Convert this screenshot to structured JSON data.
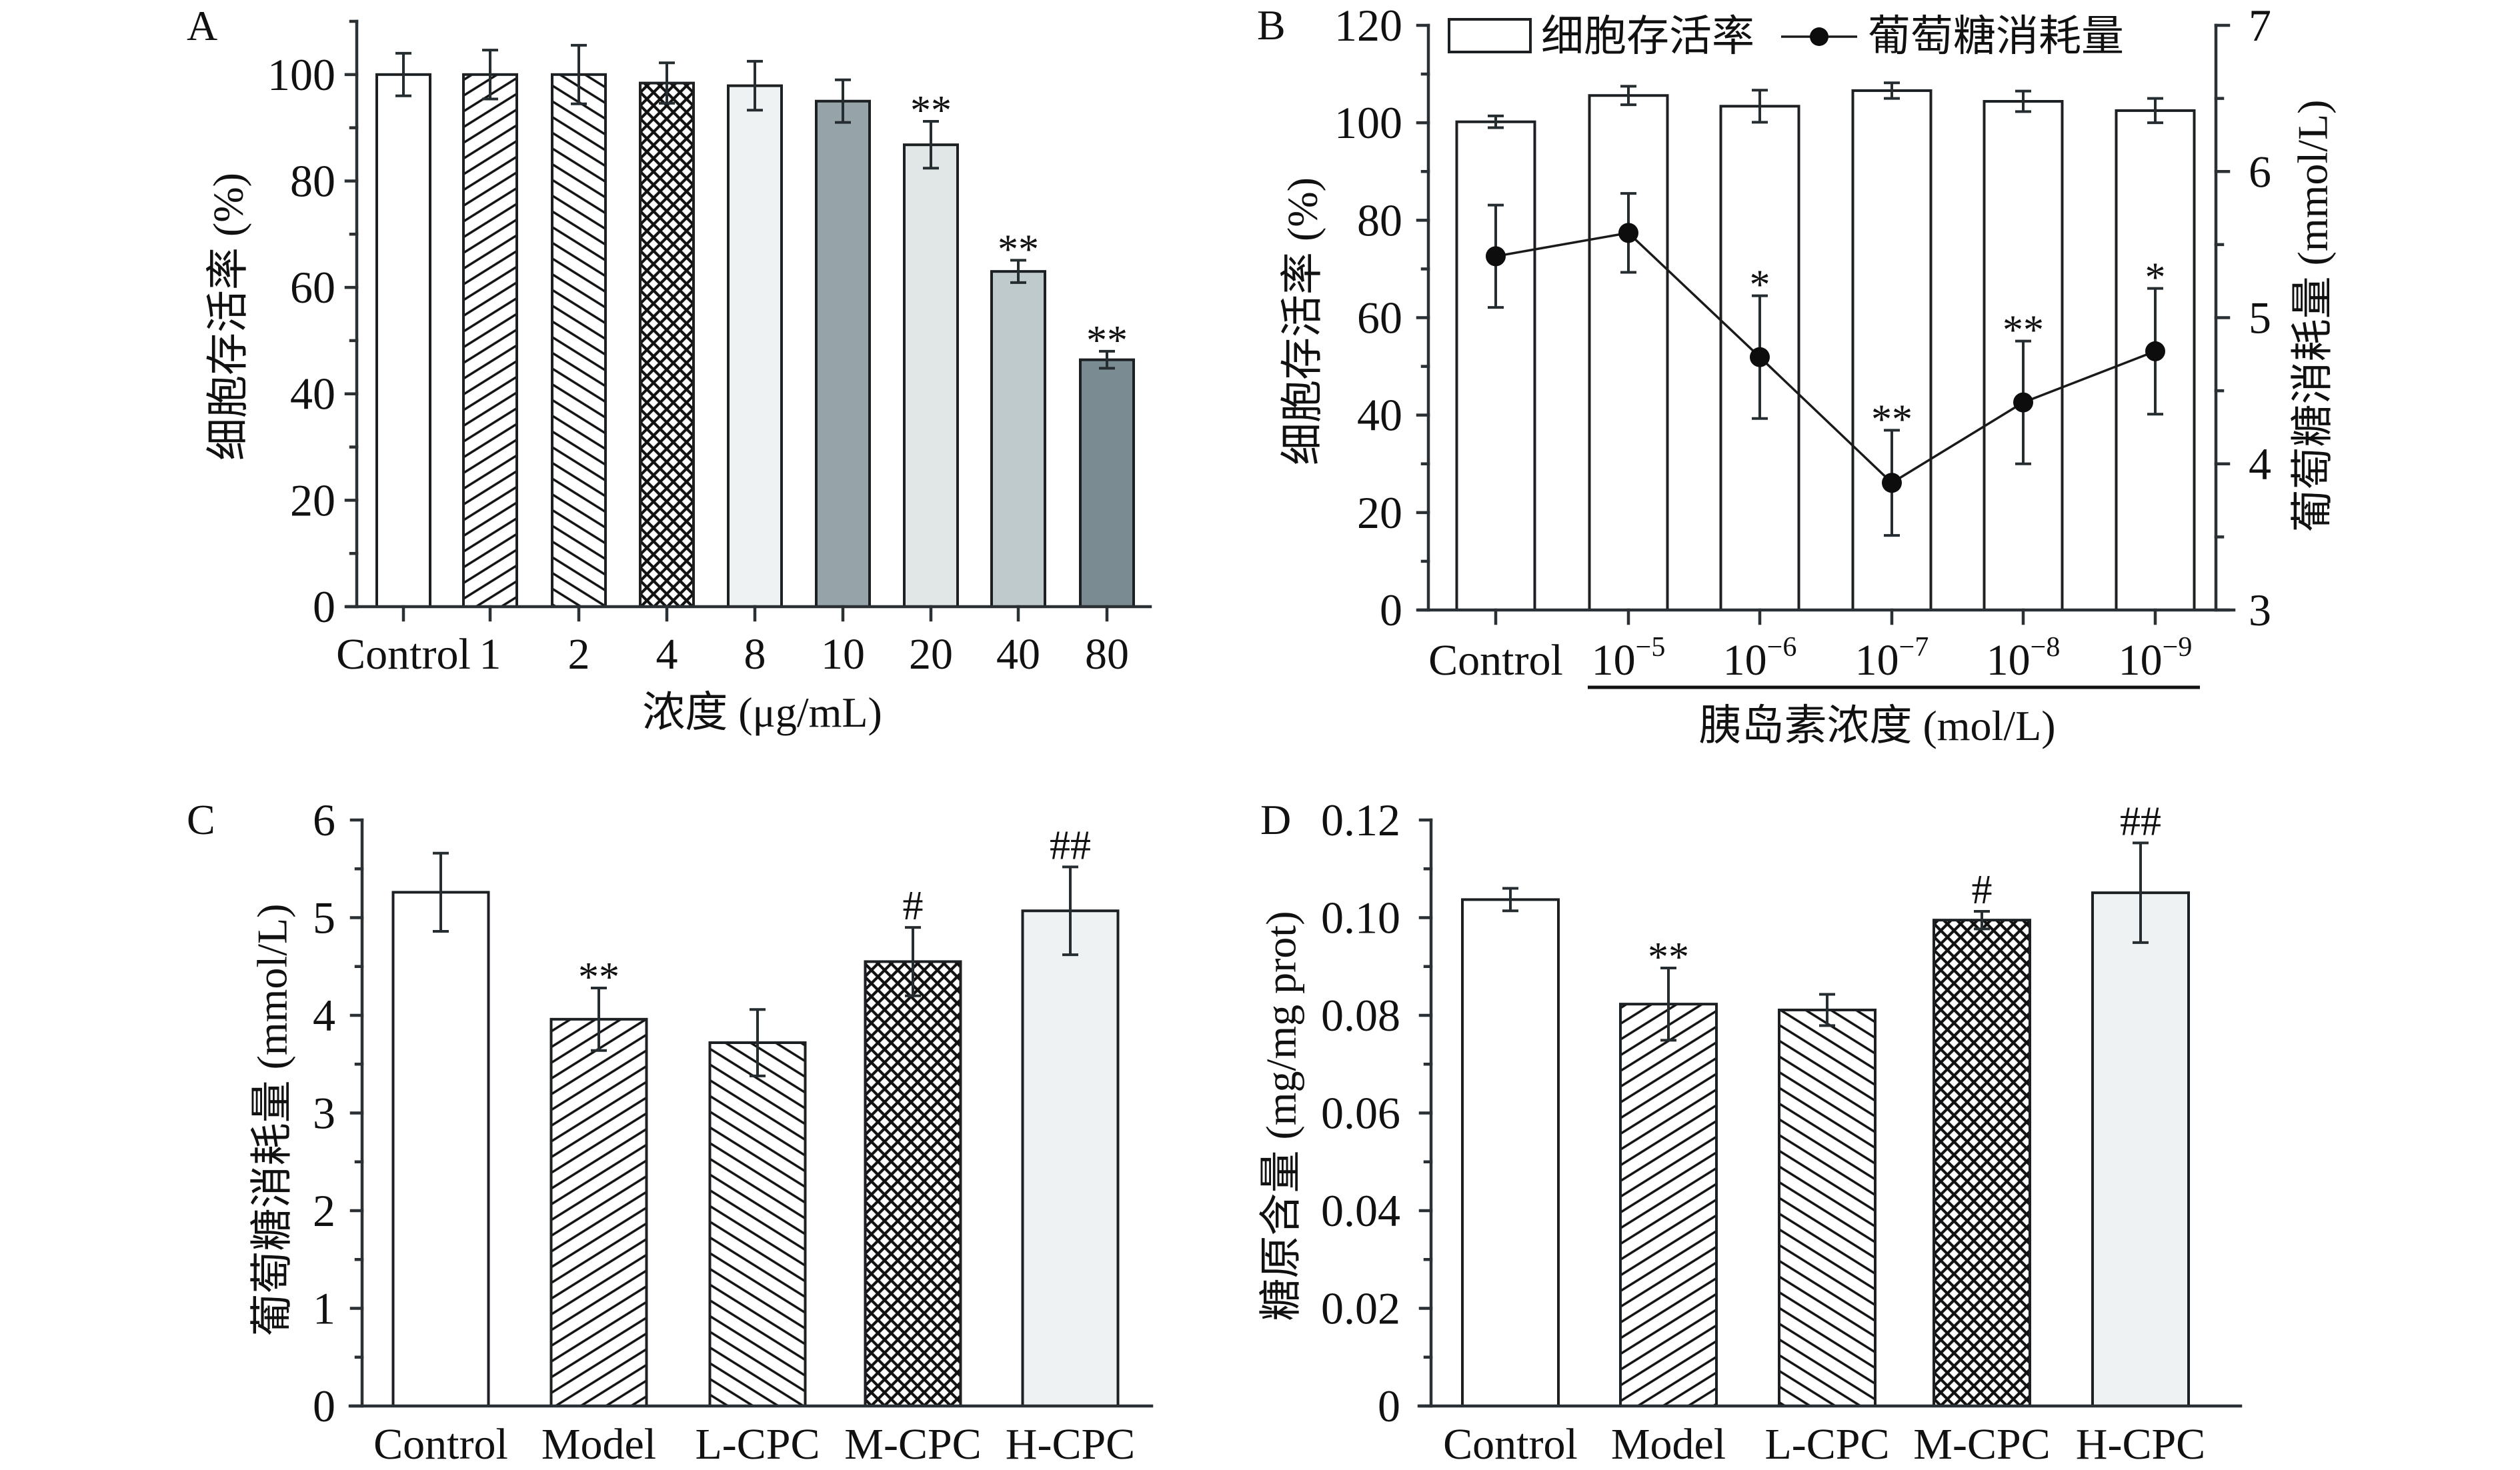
{
  "chart_data": [
    {
      "panel": "A",
      "type": "bar",
      "title": "",
      "xlabel": "浓度 (μg/mL)",
      "ylabel": "细胞存活率 (%)",
      "ylim": [
        0,
        110
      ],
      "yticks": [
        0,
        20,
        40,
        60,
        80,
        100
      ],
      "ytick_labels": [
        "0",
        "20",
        "40",
        "60",
        "80",
        "100"
      ],
      "yminor_ticks": [
        10,
        30,
        50,
        70,
        90,
        110
      ],
      "grid": false,
      "legend": null,
      "categories": [
        {
          "text": "Control"
        },
        {
          "text": "1"
        },
        {
          "text": "2"
        },
        {
          "text": "4"
        },
        {
          "text": "8"
        },
        {
          "text": "10"
        },
        {
          "text": "20"
        },
        {
          "text": "40"
        },
        {
          "text": "80"
        }
      ],
      "series": [
        {
          "name": "细胞存活率",
          "type": "bar",
          "axis": "left",
          "values": [
            100.0,
            100.0,
            100.0,
            98.4,
            97.9,
            95.0,
            86.8,
            63.0,
            46.4
          ],
          "errors": [
            4.0,
            4.6,
            5.5,
            3.8,
            4.6,
            4.0,
            4.4,
            2.1,
            1.6
          ],
          "significance": [
            "",
            "",
            "",
            "",
            "",
            "",
            "**",
            "**",
            "**"
          ],
          "fills": [
            "#ffffff",
            "hatch-forward",
            "hatch-backward",
            "crosshatch",
            "#eef2f3",
            "#96a4a9",
            "#e0e7e6",
            "#bfcacd",
            "#7a8b91"
          ]
        }
      ]
    },
    {
      "panel": "B",
      "type": "bar+line",
      "title": "",
      "xlabel": "胰岛素浓度 (mol/L)",
      "ylabel": "细胞存活率 (%)",
      "y2label": "葡萄糖消耗量 (mmol/L)",
      "ylim": [
        0,
        120
      ],
      "yticks": [
        0,
        20,
        40,
        60,
        80,
        100,
        120
      ],
      "ytick_labels": [
        "0",
        "20",
        "40",
        "60",
        "80",
        "100",
        "120"
      ],
      "yminor_ticks": [
        10,
        30,
        50,
        70,
        90,
        110
      ],
      "y2lim": [
        3,
        7
      ],
      "y2ticks": [
        3,
        4,
        5,
        6,
        7
      ],
      "y2tick_labels": [
        "3",
        "4",
        "5",
        "6",
        "7"
      ],
      "y2minor_ticks": [
        3.5,
        4.5,
        5.5,
        6.5
      ],
      "grid": false,
      "group_bracket": {
        "from_category": 1,
        "to_category": 5
      },
      "legend": {
        "position": "top",
        "items": [
          {
            "label": "细胞存活率",
            "marker": "bar"
          },
          {
            "label": "葡萄糖消耗量",
            "marker": "line-dot"
          }
        ]
      },
      "categories": [
        {
          "text": "Control",
          "sup": ""
        },
        {
          "text": "10",
          "sup": "−5"
        },
        {
          "text": "10",
          "sup": "−6"
        },
        {
          "text": "10",
          "sup": "−7"
        },
        {
          "text": "10",
          "sup": "−8"
        },
        {
          "text": "10",
          "sup": "−9"
        }
      ],
      "series": [
        {
          "name": "细胞存活率",
          "type": "bar",
          "axis": "left",
          "values": [
            100.2,
            105.6,
            103.4,
            106.6,
            104.4,
            102.5
          ],
          "errors": [
            1.2,
            1.9,
            3.3,
            1.6,
            2.1,
            2.5
          ],
          "significance": [
            "",
            "",
            "",
            "",
            "",
            ""
          ],
          "fills": [
            "#ffffff",
            "#ffffff",
            "#ffffff",
            "#ffffff",
            "#ffffff",
            "#ffffff"
          ]
        },
        {
          "name": "葡萄糖消耗量",
          "type": "line",
          "axis": "right",
          "values": [
            5.42,
            5.58,
            4.73,
            3.87,
            4.42,
            4.77
          ],
          "errors": [
            0.35,
            0.27,
            0.42,
            0.36,
            0.42,
            0.43
          ],
          "significance": [
            "",
            "",
            "*",
            "**",
            "**",
            "*"
          ]
        }
      ]
    },
    {
      "panel": "C",
      "type": "bar",
      "title": "",
      "xlabel": "",
      "ylabel": "葡萄糖消耗量 (mmol/L)",
      "ylim": [
        0,
        6
      ],
      "yticks": [
        0,
        1,
        2,
        3,
        4,
        5,
        6
      ],
      "ytick_labels": [
        "0",
        "1",
        "2",
        "3",
        "4",
        "5",
        "6"
      ],
      "yminor_ticks": [
        0.5,
        1.5,
        2.5,
        3.5,
        4.5,
        5.5
      ],
      "grid": false,
      "legend": null,
      "categories": [
        {
          "text": "Control"
        },
        {
          "text": "Model"
        },
        {
          "text": "L-CPC"
        },
        {
          "text": "M-CPC"
        },
        {
          "text": "H-CPC"
        }
      ],
      "series": [
        {
          "name": "葡萄糖消耗量",
          "type": "bar",
          "axis": "left",
          "values": [
            5.26,
            3.96,
            3.72,
            4.55,
            5.07
          ],
          "errors": [
            0.4,
            0.32,
            0.34,
            0.35,
            0.45
          ],
          "significance": [
            "",
            "**",
            "",
            "#",
            "##"
          ],
          "fills": [
            "#ffffff",
            "hatch-forward",
            "hatch-backward",
            "crosshatch",
            "#eef2f3"
          ]
        }
      ]
    },
    {
      "panel": "D",
      "type": "bar",
      "title": "",
      "xlabel": "",
      "ylabel": "糖原含量 (mg/mg prot)",
      "ylim": [
        0,
        0.12
      ],
      "yticks": [
        0,
        0.02,
        0.04,
        0.06,
        0.08,
        0.1,
        0.12
      ],
      "ytick_labels": [
        "0",
        "0.02",
        "0.04",
        "0.06",
        "0.08",
        "0.10",
        "0.12"
      ],
      "yminor_ticks": [
        0.01,
        0.03,
        0.05,
        0.07,
        0.09,
        0.11
      ],
      "grid": false,
      "legend": null,
      "categories": [
        {
          "text": "Control"
        },
        {
          "text": "Model"
        },
        {
          "text": "L-CPC"
        },
        {
          "text": "M-CPC"
        },
        {
          "text": "H-CPC"
        }
      ],
      "series": [
        {
          "name": "糖原含量",
          "type": "bar",
          "axis": "left",
          "values": [
            0.1037,
            0.0823,
            0.0811,
            0.0995,
            0.1051
          ],
          "errors": [
            0.0023,
            0.0074,
            0.0032,
            0.0018,
            0.0102
          ],
          "significance": [
            "",
            "**",
            "",
            "#",
            "##"
          ],
          "fills": [
            "#ffffff",
            "hatch-forward",
            "hatch-backward",
            "crosshatch",
            "#eef2f3"
          ]
        }
      ]
    }
  ]
}
